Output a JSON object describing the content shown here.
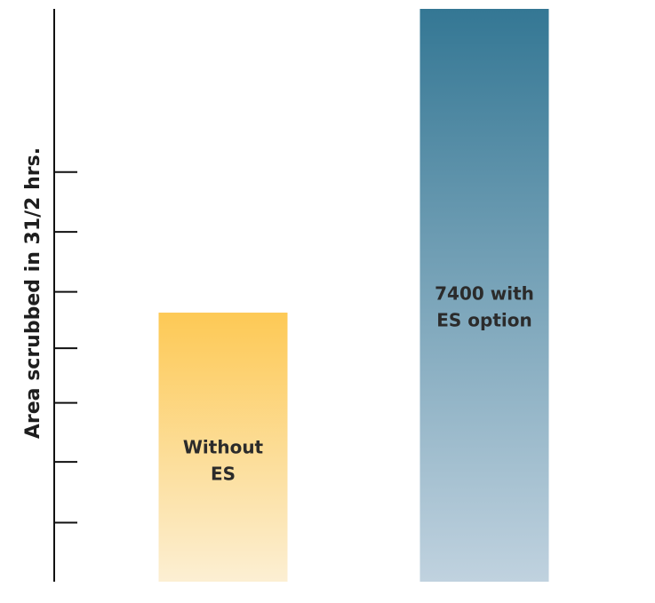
{
  "chart_data": {
    "type": "bar",
    "categories": [
      "Without ES",
      "7400 with ES option"
    ],
    "values": [
      31,
      66
    ],
    "ylim": [
      0,
      66
    ],
    "grid": false,
    "title": "",
    "xlabel": "",
    "ylabel": "Area scrubbed in 31/2 hrs.",
    "bar_label_lines": [
      [
        "Without",
        "ES"
      ],
      [
        "7400 with",
        "ES option"
      ]
    ],
    "y_ticks": [
      6.8,
      13.8,
      20.6,
      26.9,
      33.4,
      40.3,
      47.2
    ],
    "colors": {
      "axis": "#111111",
      "bar_0_top": "#fdc955",
      "bar_0_bottom": "#fcefd3",
      "bar_1_top": "#347794",
      "bar_1_bottom": "#c0d2df"
    }
  }
}
